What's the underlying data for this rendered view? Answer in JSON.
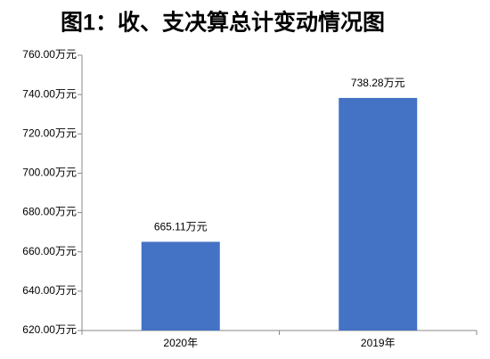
{
  "chart_data": {
    "type": "bar",
    "title": "图1：收、支决算总计变动情况图",
    "categories": [
      "2020年",
      "2019年"
    ],
    "values": [
      665.11,
      738.28
    ],
    "value_labels": [
      "665.11万元",
      "738.28万元"
    ],
    "color": "#4472c4",
    "ylim": [
      620,
      760
    ],
    "yticks": [
      {
        "value": 620,
        "label": "620.00万元"
      },
      {
        "value": 640,
        "label": "640.00万元"
      },
      {
        "value": 660,
        "label": "660.00万元"
      },
      {
        "value": 680,
        "label": "680.00万元"
      },
      {
        "value": 700,
        "label": "700.00万元"
      },
      {
        "value": 720,
        "label": "720.00万元"
      },
      {
        "value": 740,
        "label": "740.00万元"
      },
      {
        "value": 760,
        "label": "760.00万元"
      }
    ],
    "grid": false
  }
}
